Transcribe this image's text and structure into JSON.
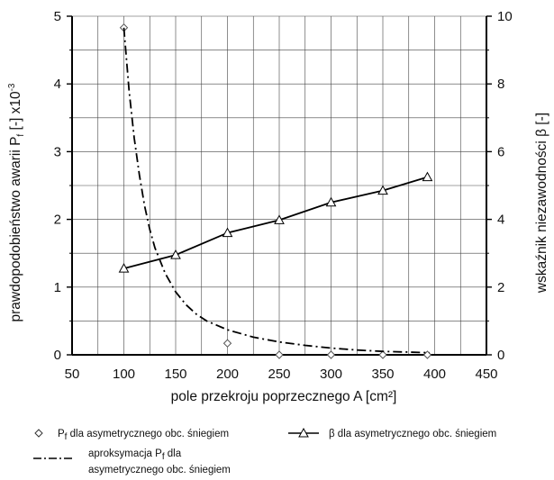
{
  "chart_data": {
    "type": "line",
    "title": "",
    "xlabel": "pole przekroju poprzecznego A [cm²]",
    "ylabel_left": {
      "main": "prawdopodobieństwo awarii P",
      "sub": "f",
      "rest": " [-] x10",
      "sup": "-3"
    },
    "ylabel_right": "wskaźnik niezawodności β [-]",
    "xlim": [
      50,
      450
    ],
    "xticks": [
      50,
      100,
      150,
      200,
      250,
      300,
      350,
      400,
      450
    ],
    "ylim_left": [
      0,
      5
    ],
    "yticks_left": [
      0,
      1,
      2,
      3,
      4,
      5
    ],
    "ylim_right": [
      0,
      10
    ],
    "yticks_right": [
      0,
      2,
      4,
      6,
      8,
      10
    ],
    "grid": true,
    "legend_position": "bottom",
    "series": [
      {
        "name": {
          "main": "P",
          "sub": "f",
          "rest": " dla asymetrycznego obc. śniegiem"
        },
        "axis": "left",
        "style": "marker-only",
        "marker": "diamond",
        "x": [
          100,
          200,
          250,
          300,
          350,
          393
        ],
        "y": [
          4.83,
          0.17,
          0.0,
          0.0,
          0.0,
          0.0
        ]
      },
      {
        "name": {
          "main": "β dla asymetrycznego obc. śniegiem",
          "sub": "",
          "rest": ""
        },
        "axis": "right",
        "style": "solid",
        "marker": "triangle",
        "x": [
          100,
          150,
          200,
          250,
          300,
          350,
          393
        ],
        "y": [
          2.55,
          2.95,
          3.6,
          3.98,
          4.5,
          4.85,
          5.25
        ]
      },
      {
        "name": {
          "main": "aproksymacja P",
          "sub": "f",
          "rest": " dla",
          "line2": "asymetrycznego obc. śniegiem"
        },
        "axis": "left",
        "style": "dash-dot",
        "marker": "none",
        "x": [
          100,
          105,
          110,
          115,
          120,
          125,
          130,
          140,
          150,
          160,
          170,
          180,
          200,
          225,
          250,
          275,
          300,
          325,
          350,
          375,
          395
        ],
        "y": [
          4.83,
          3.9,
          3.2,
          2.65,
          2.2,
          1.85,
          1.58,
          1.2,
          0.93,
          0.74,
          0.6,
          0.5,
          0.37,
          0.26,
          0.19,
          0.14,
          0.1,
          0.07,
          0.05,
          0.04,
          0.03
        ]
      }
    ]
  }
}
